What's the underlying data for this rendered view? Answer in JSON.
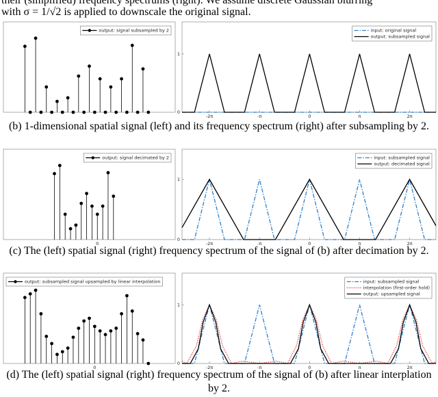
{
  "text": {
    "line1": "their (simplified) frequency spectrums (right). We assume discrete Gaussian blurring",
    "line2": "with σ = 1/√2 is applied to downscale the original signal."
  },
  "captions": [
    "(b) 1-dimensional spatial signal (left) and its frequency spectrum (right) after subsampling by 2.",
    "(c) The (left) spatial signal (right) frequency spectrum of the signal of (b) after decimation by 2.",
    "(d) The (left) spatial signal (right) frequency spectrum of the signal of (b) after linear interplation by 2."
  ],
  "chart_data": [
    {
      "type": "stem",
      "legend": "upper right",
      "xlim": [
        -17,
        15
      ],
      "ylim": [
        0,
        1
      ],
      "x": [
        -13,
        -12,
        -11,
        -10,
        -9,
        -8,
        -7,
        -6,
        -5,
        -4,
        -3,
        -2,
        -1,
        0,
        1,
        2,
        3,
        4,
        5,
        6,
        7,
        8,
        9,
        10
      ],
      "series": [
        {
          "name": "output: signal subsampled by 2",
          "color": "#000000",
          "values": [
            0.73,
            0,
            0.82,
            0,
            0.28,
            0,
            0.12,
            0,
            0.16,
            0,
            0.4,
            0,
            0.51,
            0,
            0.37,
            0,
            0.28,
            0,
            0.37,
            0,
            0.74,
            0,
            0.48,
            0
          ]
        }
      ]
    },
    {
      "type": "line",
      "legend": "upper right",
      "xlim": [
        -8.0,
        7.93
      ],
      "ylim": [
        0,
        1.55
      ],
      "xticks": [
        {
          "value": -6.283,
          "label": "-2π"
        },
        {
          "value": -3.142,
          "label": "-π"
        },
        0,
        {
          "value": 3.142,
          "label": "π"
        },
        {
          "value": 6.283,
          "label": "2π"
        }
      ],
      "yticks": [
        0,
        1
      ],
      "series": [
        {
          "name": "input: original signal",
          "color": "#2f7fc8",
          "linestyle": "dash-dot",
          "x": [
            -8.0,
            7.93
          ],
          "values": [
            0,
            0
          ]
        },
        {
          "name": "output: subsampled signal",
          "color": "#000000",
          "linestyle": "solid",
          "x": [
            -8.0,
            -7.22,
            -6.28,
            -5.34,
            -4.08,
            -3.14,
            -2.2,
            -0.94,
            0,
            0.94,
            2.2,
            3.14,
            4.08,
            5.34,
            6.28,
            7.22,
            7.93
          ],
          "values": [
            0,
            0,
            1,
            0,
            0,
            1,
            0,
            0,
            1,
            0,
            0,
            1,
            0,
            0,
            1,
            0,
            0
          ]
        }
      ]
    },
    {
      "type": "stem",
      "legend": "upper right",
      "xlim": [
        -17.5,
        14.5
      ],
      "ylim": [
        0,
        1
      ],
      "xticks": [
        0
      ],
      "x": [
        -8,
        -7,
        -6,
        -5,
        -4,
        -3,
        -2,
        -1,
        0,
        1,
        2,
        3
      ],
      "series": [
        {
          "name": "output: signal decimated by 2",
          "color": "#000000",
          "values": [
            0.73,
            0.82,
            0.28,
            0.12,
            0.16,
            0.4,
            0.51,
            0.37,
            0.28,
            0.37,
            0.74,
            0.48
          ]
        }
      ]
    },
    {
      "type": "line",
      "legend": "upper right",
      "xlim": [
        -8.0,
        7.93
      ],
      "ylim": [
        0,
        1.5
      ],
      "xticks": [
        {
          "value": -6.283,
          "label": "-2π"
        },
        {
          "value": -3.142,
          "label": "-π"
        },
        0,
        {
          "value": 3.142,
          "label": "π"
        },
        {
          "value": 6.283,
          "label": "2π"
        }
      ],
      "yticks": [
        0,
        1
      ],
      "series": [
        {
          "name": "input: subsampled signal",
          "color": "#2f7fc8",
          "linestyle": "dash-dot",
          "x": [
            -8.0,
            -7.22,
            -6.28,
            -5.34,
            -4.08,
            -3.14,
            -2.2,
            -0.94,
            0,
            0.94,
            2.2,
            3.14,
            4.08,
            5.34,
            6.28,
            7.22,
            7.93
          ],
          "values": [
            0,
            0,
            1,
            0,
            0,
            1,
            0,
            0,
            1,
            0,
            0,
            1,
            0,
            0,
            1,
            0,
            0
          ]
        },
        {
          "name": "output: decimated signal",
          "color": "#000000",
          "linestyle": "solid",
          "x": [
            -8.0,
            -6.28,
            -4.14,
            -2.14,
            0,
            2.14,
            4.14,
            6.28,
            7.93
          ],
          "values": [
            0.2,
            1,
            0,
            0,
            1,
            0,
            0,
            1,
            0.23
          ]
        }
      ]
    },
    {
      "type": "stem",
      "legend": "upper left",
      "xlim": [
        -17,
        15
      ],
      "ylim": [
        0,
        1
      ],
      "xticks": [
        0
      ],
      "x": [
        -13,
        -12,
        -11,
        -10,
        -9,
        -8,
        -7,
        -6,
        -5,
        -4,
        -3,
        -2,
        -1,
        0,
        1,
        2,
        3,
        4,
        5,
        6,
        7,
        8,
        9,
        10
      ],
      "series": [
        {
          "name": "output: subsampled signal upsampled by linear interpolation",
          "color": "#000000",
          "values": [
            0.73,
            0.77,
            0.81,
            0.55,
            0.3,
            0.22,
            0.1,
            0.13,
            0.17,
            0.29,
            0.39,
            0.47,
            0.5,
            0.41,
            0.36,
            0.32,
            0.36,
            0.39,
            0.55,
            0.75,
            0.58,
            0.33,
            0.26,
            0
          ]
        }
      ]
    },
    {
      "type": "line",
      "legend": "upper right",
      "xlim": [
        -8.0,
        7.93
      ],
      "ylim": [
        0,
        1.54
      ],
      "xticks": [
        {
          "value": -6.283,
          "label": "-2π"
        },
        {
          "value": -3.142,
          "label": "-π"
        },
        0,
        {
          "value": 3.142,
          "label": "π"
        },
        {
          "value": 6.283,
          "label": "2π"
        }
      ],
      "yticks": [
        0,
        1
      ],
      "series": [
        {
          "name": "input: subsampled signal",
          "color": "#2f7fc8",
          "linestyle": "dash-dot",
          "x": [
            -8.0,
            -7.22,
            -6.28,
            -5.34,
            -4.08,
            -3.14,
            -2.2,
            -0.94,
            0,
            0.94,
            2.2,
            3.14,
            4.08,
            5.34,
            6.28,
            7.22,
            7.93
          ],
          "values": [
            0,
            0,
            1,
            0,
            0,
            1,
            0,
            0,
            1,
            0,
            0,
            1,
            0,
            0,
            1,
            0,
            0
          ]
        },
        {
          "name": "interpolation (first-order hold)",
          "color": "#e0302c",
          "linestyle": "dotted",
          "x": [
            -8.0,
            -7.7,
            -7.1,
            -6.7,
            -6.28,
            -5.86,
            -5.46,
            -4.9,
            -4.2,
            -3.14,
            -2.1,
            -1.38,
            -0.82,
            -0.42,
            0,
            0.42,
            0.82,
            1.38,
            2.1,
            3.14,
            4.2,
            4.9,
            5.46,
            5.86,
            6.28,
            6.7,
            7.1,
            7.7,
            7.93
          ],
          "values": [
            0.04,
            0,
            0.3,
            0.75,
            1,
            0.75,
            0.3,
            0,
            0.04,
            0,
            0.04,
            0,
            0.3,
            0.75,
            1,
            0.75,
            0.3,
            0,
            0.04,
            0,
            0.04,
            0,
            0.3,
            0.75,
            1,
            0.75,
            0.3,
            0,
            0.03
          ]
        },
        {
          "name": "output: upsampled signal",
          "color": "#000000",
          "linestyle": "solid",
          "x": [
            -8.0,
            -7.48,
            -6.98,
            -6.68,
            -6.28,
            -5.88,
            -5.58,
            -5.08,
            -1.2,
            -0.7,
            -0.4,
            0,
            0.4,
            0.7,
            1.2,
            5.08,
            5.58,
            5.88,
            6.28,
            6.68,
            6.98,
            7.48,
            7.93
          ],
          "values": [
            0,
            0,
            0.25,
            0.7,
            1,
            0.7,
            0.25,
            0,
            0,
            0.25,
            0.7,
            1,
            0.7,
            0.25,
            0,
            0,
            0.25,
            0.7,
            1,
            0.7,
            0.25,
            0,
            0
          ]
        }
      ]
    }
  ]
}
